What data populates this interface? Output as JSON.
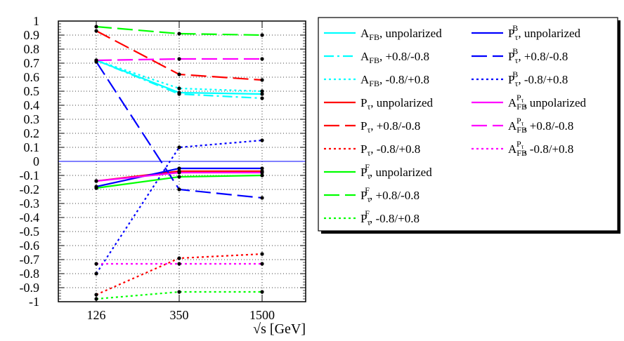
{
  "chart_data": {
    "type": "line",
    "title": "",
    "xlabel": "√s  [GeV]",
    "ylabel": "",
    "categories": [
      "126",
      "350",
      "1500"
    ],
    "ylim": [
      -1,
      1
    ],
    "yticks": [
      "1",
      "0.9",
      "0.8",
      "0.7",
      "0.6",
      "0.5",
      "0.4",
      "0.3",
      "0.2",
      "0.1",
      "0",
      "-0.1",
      "-0.2",
      "-0.3",
      "-0.4",
      "-0.5",
      "-0.6",
      "-0.7",
      "-0.8",
      "-0.9",
      "-1"
    ],
    "grid": true,
    "legend_position": "right",
    "series": [
      {
        "name": "A_FB, unpolarized",
        "base": "A",
        "sub": "FB",
        "sup": "",
        "sup_sub": "",
        "pol": "unpolarized",
        "color": "#00ffff",
        "style": "solid",
        "values": [
          0.72,
          0.49,
          0.48
        ]
      },
      {
        "name": "A_FB, +0.8/-0.8",
        "base": "A",
        "sub": "FB",
        "sup": "",
        "sup_sub": "",
        "pol": "+0.8/-0.8",
        "color": "#00ffff",
        "style": "dashdot",
        "values": [
          0.72,
          0.48,
          0.45
        ]
      },
      {
        "name": "A_FB, -0.8/+0.8",
        "base": "A",
        "sub": "FB",
        "sup": "",
        "sup_sub": "",
        "pol": "-0.8/+0.8",
        "color": "#00ffff",
        "style": "dot",
        "values": [
          0.72,
          0.52,
          0.5
        ]
      },
      {
        "name": "P_τ, unpolarized",
        "base": "P",
        "sub": "τ",
        "sup": "",
        "sup_sub": "",
        "pol": "unpolarized",
        "color": "#ff0000",
        "style": "solid",
        "values": [
          -0.14,
          -0.07,
          -0.07
        ]
      },
      {
        "name": "P_τ, +0.8/-0.8",
        "base": "P",
        "sub": "τ",
        "sup": "",
        "sup_sub": "",
        "pol": "+0.8/-0.8",
        "color": "#ff0000",
        "style": "longdash",
        "values": [
          0.93,
          0.62,
          0.58
        ]
      },
      {
        "name": "P_τ, -0.8/+0.8",
        "base": "P",
        "sub": "τ",
        "sup": "",
        "sup_sub": "",
        "pol": "-0.8/+0.8",
        "color": "#ff0000",
        "style": "dot",
        "values": [
          -0.95,
          -0.69,
          -0.66
        ]
      },
      {
        "name": "P_τ^F, unpolarized",
        "base": "P",
        "sub": "τ",
        "sup": "F",
        "sup_sub": "",
        "pol": "unpolarized",
        "color": "#00ff00",
        "style": "solid",
        "values": [
          -0.19,
          -0.11,
          -0.1
        ]
      },
      {
        "name": "P_τ^F, +0.8/-0.8",
        "base": "P",
        "sub": "τ",
        "sup": "F",
        "sup_sub": "",
        "pol": "+0.8/-0.8",
        "color": "#00ff00",
        "style": "longdash",
        "values": [
          0.96,
          0.91,
          0.9
        ]
      },
      {
        "name": "P_τ^F, -0.8/+0.8",
        "base": "P",
        "sub": "τ",
        "sup": "F",
        "sup_sub": "",
        "pol": "-0.8/+0.8",
        "color": "#00ff00",
        "style": "dot",
        "values": [
          -0.98,
          -0.93,
          -0.93
        ]
      },
      {
        "name": "P_τ^B, unpolarized",
        "base": "P",
        "sub": "τ",
        "sup": "B",
        "sup_sub": "",
        "pol": "unpolarized",
        "color": "#0000ff",
        "style": "solid",
        "values": [
          -0.18,
          -0.05,
          -0.05
        ]
      },
      {
        "name": "P_τ^B, +0.8/-0.8",
        "base": "P",
        "sub": "τ",
        "sup": "B",
        "sup_sub": "",
        "pol": "+0.8/-0.8",
        "color": "#0000ff",
        "style": "longdash",
        "values": [
          0.71,
          -0.2,
          -0.26
        ]
      },
      {
        "name": "P_τ^B, -0.8/+0.8",
        "base": "P",
        "sub": "τ",
        "sup": "B",
        "sup_sub": "",
        "pol": "-0.8/+0.8",
        "color": "#0000ff",
        "style": "dot",
        "values": [
          -0.8,
          0.1,
          0.15
        ]
      },
      {
        "name": "A_FB^Pτ, unpolarized",
        "base": "A",
        "sub": "FB",
        "sup": "P",
        "sup_sub": "τ",
        "pol": "unpolarized",
        "color": "#ff00ff",
        "style": "solid",
        "values": [
          -0.14,
          -0.08,
          -0.08
        ]
      },
      {
        "name": "A_FB^Pτ, +0.8/-0.8",
        "base": "A",
        "sub": "FB",
        "sup": "P",
        "sup_sub": "τ",
        "pol": "+0.8/-0.8",
        "color": "#ff00ff",
        "style": "longdash",
        "values": [
          0.72,
          0.73,
          0.73
        ]
      },
      {
        "name": "A_FB^Pτ, -0.8/+0.8",
        "base": "A",
        "sub": "FB",
        "sup": "P",
        "sup_sub": "τ",
        "pol": "-0.8/+0.8",
        "color": "#ff00ff",
        "style": "dot",
        "values": [
          -0.73,
          -0.73,
          -0.73
        ]
      }
    ],
    "reference_line": {
      "value": 0,
      "color": "#0000ff"
    }
  }
}
